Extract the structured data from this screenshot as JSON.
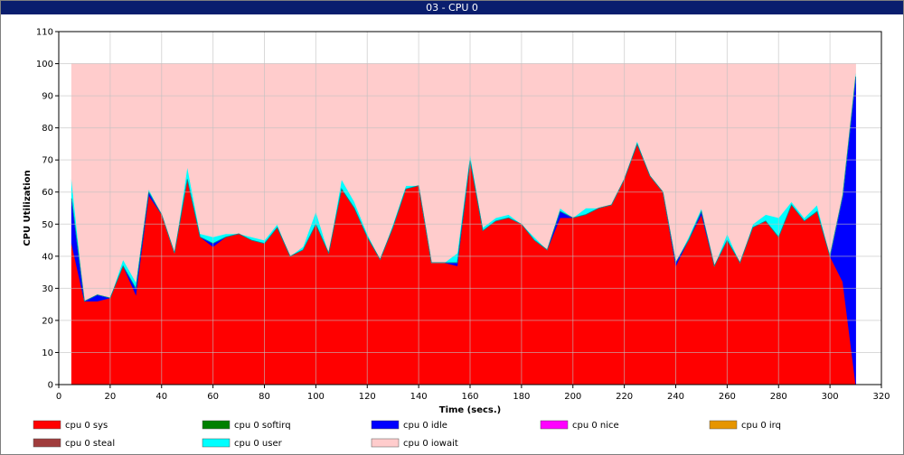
{
  "window": {
    "title": "03 - CPU 0"
  },
  "chart_data": {
    "type": "area",
    "stacked": true,
    "title": "",
    "xlabel": "Time (secs.)",
    "ylabel": "CPU Utilization",
    "xlim": [
      0,
      320
    ],
    "ylim": [
      0,
      110
    ],
    "xticks": [
      0,
      20,
      40,
      60,
      80,
      100,
      120,
      140,
      160,
      180,
      200,
      220,
      240,
      260,
      280,
      300,
      320
    ],
    "yticks": [
      0,
      10,
      20,
      30,
      40,
      50,
      60,
      70,
      80,
      90,
      100,
      110
    ],
    "grid": true,
    "legend_position": "bottom",
    "x": [
      5,
      10,
      15,
      20,
      25,
      30,
      35,
      40,
      45,
      50,
      55,
      60,
      65,
      70,
      75,
      80,
      85,
      90,
      95,
      100,
      105,
      110,
      115,
      120,
      125,
      130,
      135,
      140,
      145,
      150,
      155,
      160,
      165,
      170,
      175,
      180,
      185,
      190,
      195,
      200,
      205,
      210,
      215,
      220,
      225,
      230,
      235,
      240,
      245,
      250,
      255,
      260,
      265,
      270,
      275,
      280,
      285,
      290,
      295,
      300,
      305,
      310
    ],
    "series": [
      {
        "name": "cpu 0 sys",
        "color": "#ff0000",
        "values": [
          44,
          26,
          26,
          27,
          37,
          28,
          59,
          53,
          41,
          64,
          46,
          43,
          46,
          47,
          45,
          44,
          49,
          40,
          42,
          50,
          41,
          61,
          55,
          46,
          39,
          49,
          61,
          62,
          38,
          38,
          37,
          70,
          48,
          51,
          52,
          50,
          45,
          42,
          52,
          52,
          53,
          55,
          56,
          64,
          75,
          65,
          60,
          37,
          45,
          53,
          37,
          45,
          38,
          49,
          51,
          46,
          56,
          51,
          54,
          40,
          32,
          0
        ]
      },
      {
        "name": "cpu 0 softirq",
        "color": "#008000",
        "values": [
          0,
          0,
          0,
          0,
          0,
          0,
          0,
          0,
          0,
          0,
          0,
          0,
          0,
          0,
          0,
          0,
          0,
          0,
          0,
          0,
          0,
          0,
          0,
          0,
          0,
          0,
          0,
          0,
          0,
          0,
          0,
          0,
          0,
          0,
          0,
          0,
          0,
          0,
          0,
          0,
          0,
          0,
          0,
          0,
          0,
          0,
          0,
          0,
          0,
          0,
          0,
          0,
          0,
          0,
          0,
          0,
          0,
          0,
          0,
          0,
          0,
          0
        ]
      },
      {
        "name": "cpu 0 idle",
        "color": "#0000ff",
        "values": [
          14,
          0,
          2,
          0,
          0,
          2,
          1,
          0,
          0,
          0,
          0,
          1,
          0,
          0,
          0,
          0,
          0,
          0,
          0,
          0,
          0,
          0,
          0,
          0,
          0,
          0,
          0,
          0,
          0,
          0,
          1,
          0,
          0,
          0,
          0,
          0,
          0,
          0,
          2,
          0,
          0,
          0,
          0,
          0,
          0,
          0,
          0,
          1,
          0,
          1,
          0,
          0,
          0,
          0,
          0,
          0,
          0,
          0,
          0,
          0,
          27,
          96
        ]
      },
      {
        "name": "cpu 0 nice",
        "color": "#ff00ff",
        "values": [
          0,
          0,
          0,
          0,
          0,
          0,
          0,
          0,
          0,
          0,
          0,
          0,
          0,
          0,
          0,
          0,
          0,
          0,
          0,
          0,
          0,
          0,
          0,
          0,
          0,
          0,
          0,
          0,
          0,
          0,
          0,
          0,
          0,
          0,
          0,
          0,
          0,
          0,
          0,
          0,
          0,
          0,
          0,
          0,
          0,
          0,
          0,
          0,
          0,
          0,
          0,
          0,
          0,
          0,
          0,
          0,
          0,
          0,
          0,
          0,
          0,
          0
        ]
      },
      {
        "name": "cpu 0 irq",
        "color": "#e69500",
        "values": [
          0,
          0,
          0,
          0,
          0,
          0,
          0,
          0,
          0,
          0,
          0,
          0,
          0,
          0,
          0,
          0,
          0,
          0,
          0,
          0,
          0,
          0,
          0,
          0,
          0,
          0,
          0,
          0,
          0,
          0,
          0,
          0,
          0,
          0,
          0,
          0,
          0,
          0,
          0,
          0,
          0,
          0,
          0,
          0,
          0,
          0,
          0,
          0,
          0,
          0,
          0,
          0,
          0,
          0,
          0,
          0,
          0,
          0,
          0,
          0,
          0,
          0
        ]
      },
      {
        "name": "cpu 0 steal",
        "color": "#a03c3c",
        "values": [
          0,
          0,
          0,
          0,
          0,
          0,
          0,
          0,
          0,
          0,
          0,
          0,
          0,
          0,
          0,
          0,
          0,
          0,
          0,
          0,
          0,
          0,
          0,
          0,
          0,
          0,
          0,
          0,
          0,
          0,
          0,
          0,
          0,
          0,
          0,
          0,
          0,
          0,
          0,
          0,
          0,
          0,
          0,
          0,
          0,
          0,
          0,
          0,
          0,
          0,
          0,
          0,
          0,
          0,
          0,
          0,
          0,
          0,
          0,
          0,
          0,
          0
        ]
      },
      {
        "name": "cpu 0 user",
        "color": "#00ffff",
        "values": [
          6,
          0,
          0,
          0,
          2,
          2,
          1,
          0,
          0,
          4,
          1,
          2,
          1,
          0,
          1,
          1,
          1,
          0,
          1,
          4,
          0,
          3,
          2,
          1,
          0,
          1,
          1,
          0,
          0,
          0,
          3,
          2,
          1,
          1,
          1,
          0,
          1,
          0,
          1,
          0,
          2,
          0,
          0,
          0,
          1,
          0,
          0,
          0,
          1,
          1,
          0,
          2,
          0,
          1,
          2,
          6,
          1,
          1,
          2,
          0,
          0,
          1
        ]
      },
      {
        "name": "cpu 0 iowait",
        "color": "#ffcccc",
        "values": [
          36,
          74,
          72,
          73,
          61,
          68,
          39,
          47,
          59,
          32,
          53,
          54,
          53,
          53,
          54,
          55,
          50,
          60,
          57,
          46,
          59,
          36,
          43,
          53,
          61,
          50,
          38,
          38,
          62,
          62,
          59,
          28,
          51,
          48,
          47,
          50,
          54,
          58,
          45,
          48,
          45,
          45,
          44,
          36,
          24,
          35,
          40,
          62,
          54,
          45,
          63,
          53,
          62,
          50,
          47,
          48,
          43,
          48,
          44,
          60,
          41,
          3
        ]
      }
    ]
  }
}
